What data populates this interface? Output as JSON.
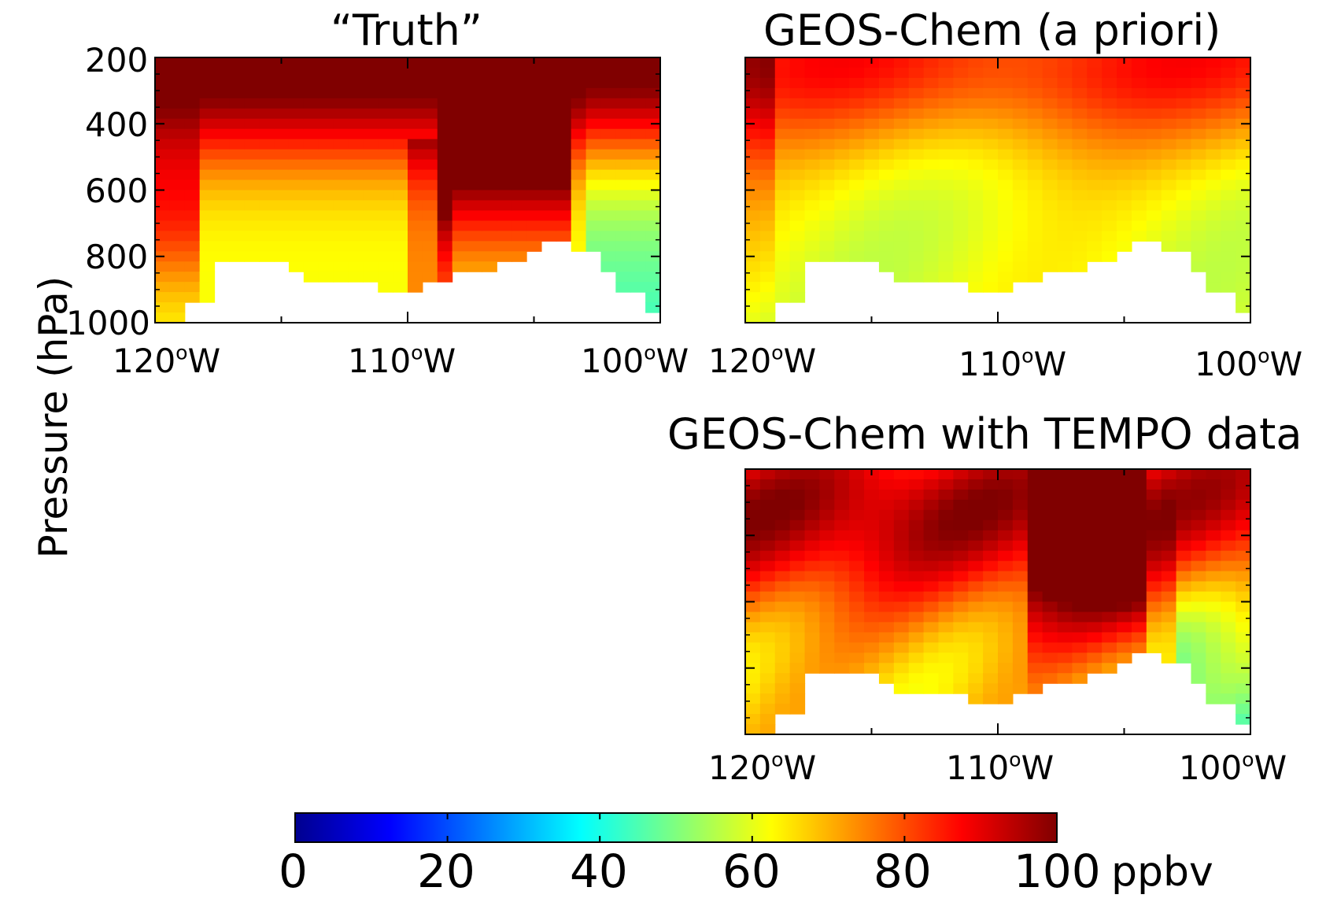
{
  "chart_data": {
    "type": "heatmap",
    "ylabel": "Pressure (hPa)",
    "y_ticks": [
      "200",
      "400",
      "600",
      "800",
      "1000"
    ],
    "y_range_hPa": [
      200,
      1000
    ],
    "x_range_deg": [
      -120,
      -100
    ],
    "x_ticks": [
      {
        "value": "120",
        "unit": "o",
        "suffix": "W"
      },
      {
        "value": "110",
        "unit": "o",
        "suffix": "W"
      },
      {
        "value": "100",
        "unit": "o",
        "suffix": "W"
      }
    ],
    "panels": [
      {
        "title": "“Truth”",
        "position": "top-left",
        "surface_pressure_hPa": [
          1000,
          940,
          830,
          830,
          830,
          860,
          880,
          890,
          880,
          900,
          920,
          870,
          850,
          840,
          800,
          790,
          750,
          780,
          850,
          900,
          960
        ]
      },
      {
        "title": "GEOS-Chem (a priori)",
        "position": "top-right",
        "surface_pressure_hPa": [
          1000,
          940,
          830,
          830,
          830,
          860,
          880,
          890,
          880,
          900,
          920,
          870,
          850,
          840,
          800,
          790,
          750,
          780,
          850,
          900,
          960
        ]
      },
      {
        "title": "GEOS-Chem with TEMPO data",
        "position": "bottom-right",
        "surface_pressure_hPa": [
          1000,
          940,
          830,
          830,
          830,
          860,
          880,
          890,
          880,
          900,
          920,
          870,
          850,
          840,
          800,
          790,
          750,
          780,
          850,
          900,
          960
        ]
      }
    ],
    "colorbar": {
      "min": 0,
      "max": 100,
      "ticks": [
        "0",
        "20",
        "40",
        "60",
        "80",
        "100"
      ],
      "unit": "ppbv",
      "colormap": "jet"
    }
  }
}
